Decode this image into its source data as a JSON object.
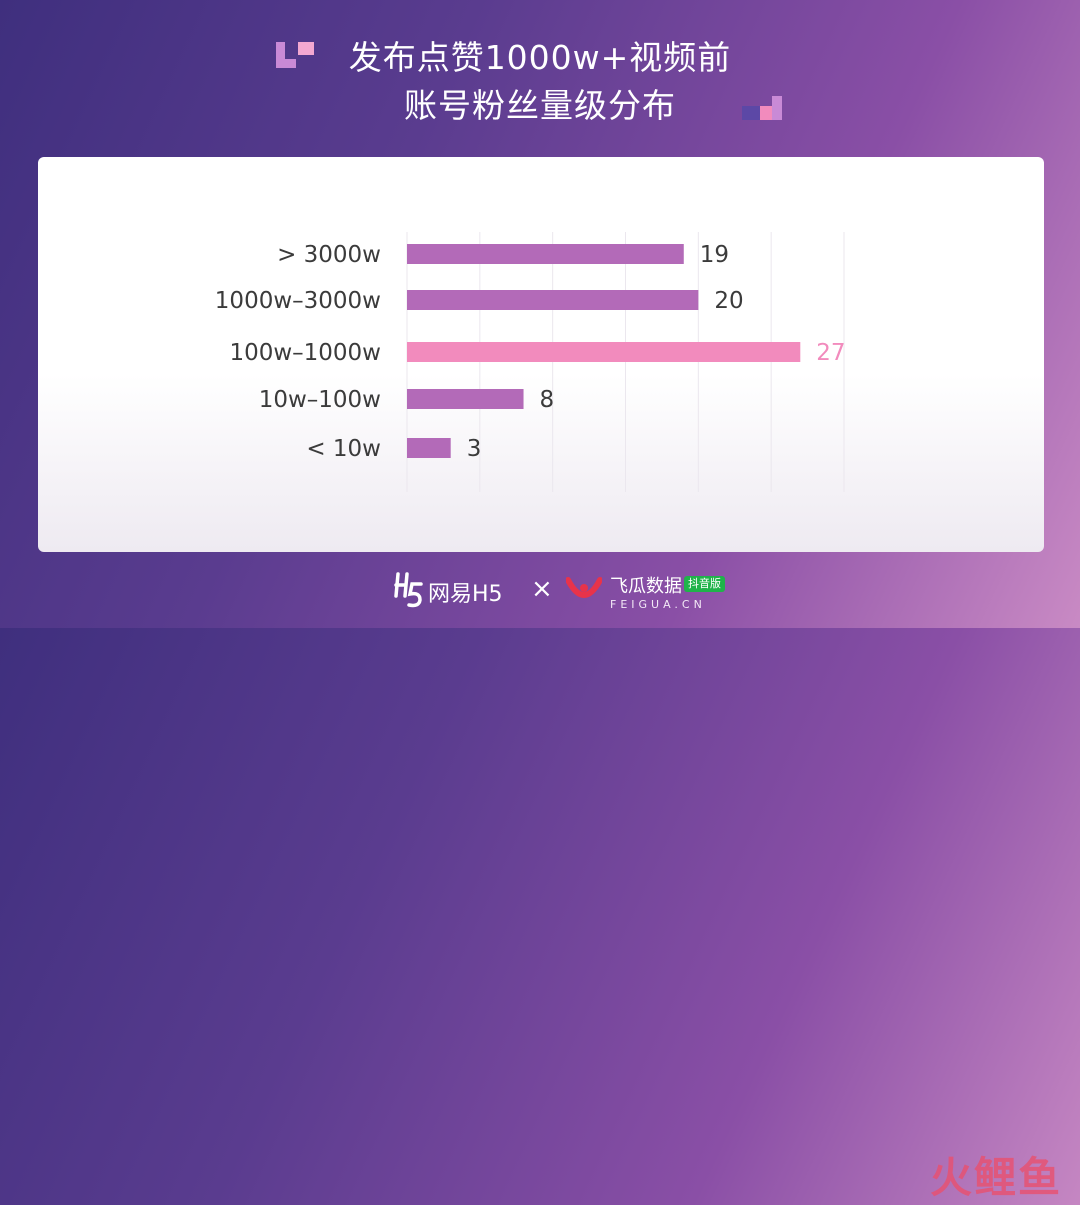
{
  "title": {
    "line1": "发布点赞1000w+视频前",
    "line2": "账号粉丝量级分布"
  },
  "colors": {
    "bar": "#b36ab8",
    "highlight": "#f28bbd",
    "label": "#3b3b3b"
  },
  "chart_data": {
    "type": "bar",
    "orientation": "horizontal",
    "categories": [
      "> 3000w",
      "1000w–3000w",
      "100w–1000w",
      "10w–100w",
      "< 10w"
    ],
    "values": [
      19,
      20,
      27,
      8,
      3
    ],
    "highlight_index": 2,
    "xlim": [
      0,
      30
    ],
    "grid": true,
    "title": "发布点赞1000w+视频前账号粉丝量级分布"
  },
  "footer": {
    "logo1_text": "网易H5",
    "separator": "×",
    "logo2_text": "飞瓜数据",
    "logo2_badge": "抖音版",
    "logo2_sub": "FEIGUA.CN",
    "watermark": "火鲤鱼"
  }
}
